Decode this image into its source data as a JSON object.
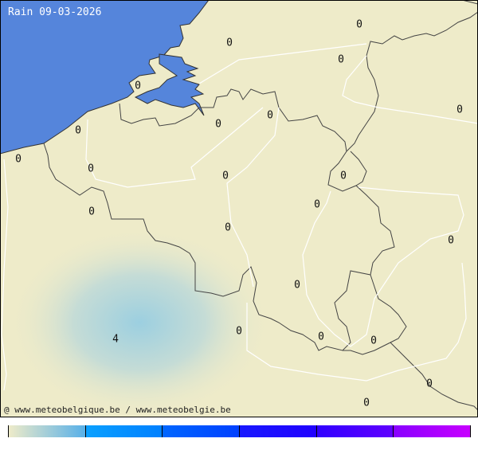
{
  "title": "Rain 09-03-2026",
  "credit": "@ www.meteobelgique.be / www.meteobelgie.be",
  "colors": {
    "sea": "#5585db",
    "land": "#eeebc9",
    "rain_max": "#9ccfe0",
    "border": "#444444"
  },
  "map_labels": [
    "0",
    "0",
    "0",
    "0",
    "0",
    "0",
    "0",
    "0",
    "0",
    "0",
    "0",
    "0",
    "0",
    "0",
    "0",
    "0",
    "0",
    "0",
    "4",
    "0",
    "0",
    "0",
    "0"
  ],
  "legend": {
    "segments": [
      [
        "#eeebc9",
        "#58b0e8"
      ],
      [
        "#0aa0ff",
        "#0080ff"
      ],
      [
        "#0066ff",
        "#0040ff"
      ],
      [
        "#1818ff",
        "#2000ff"
      ],
      [
        "#3000ff",
        "#6000ff"
      ],
      [
        "#8800ff",
        "#c800ff"
      ]
    ]
  }
}
